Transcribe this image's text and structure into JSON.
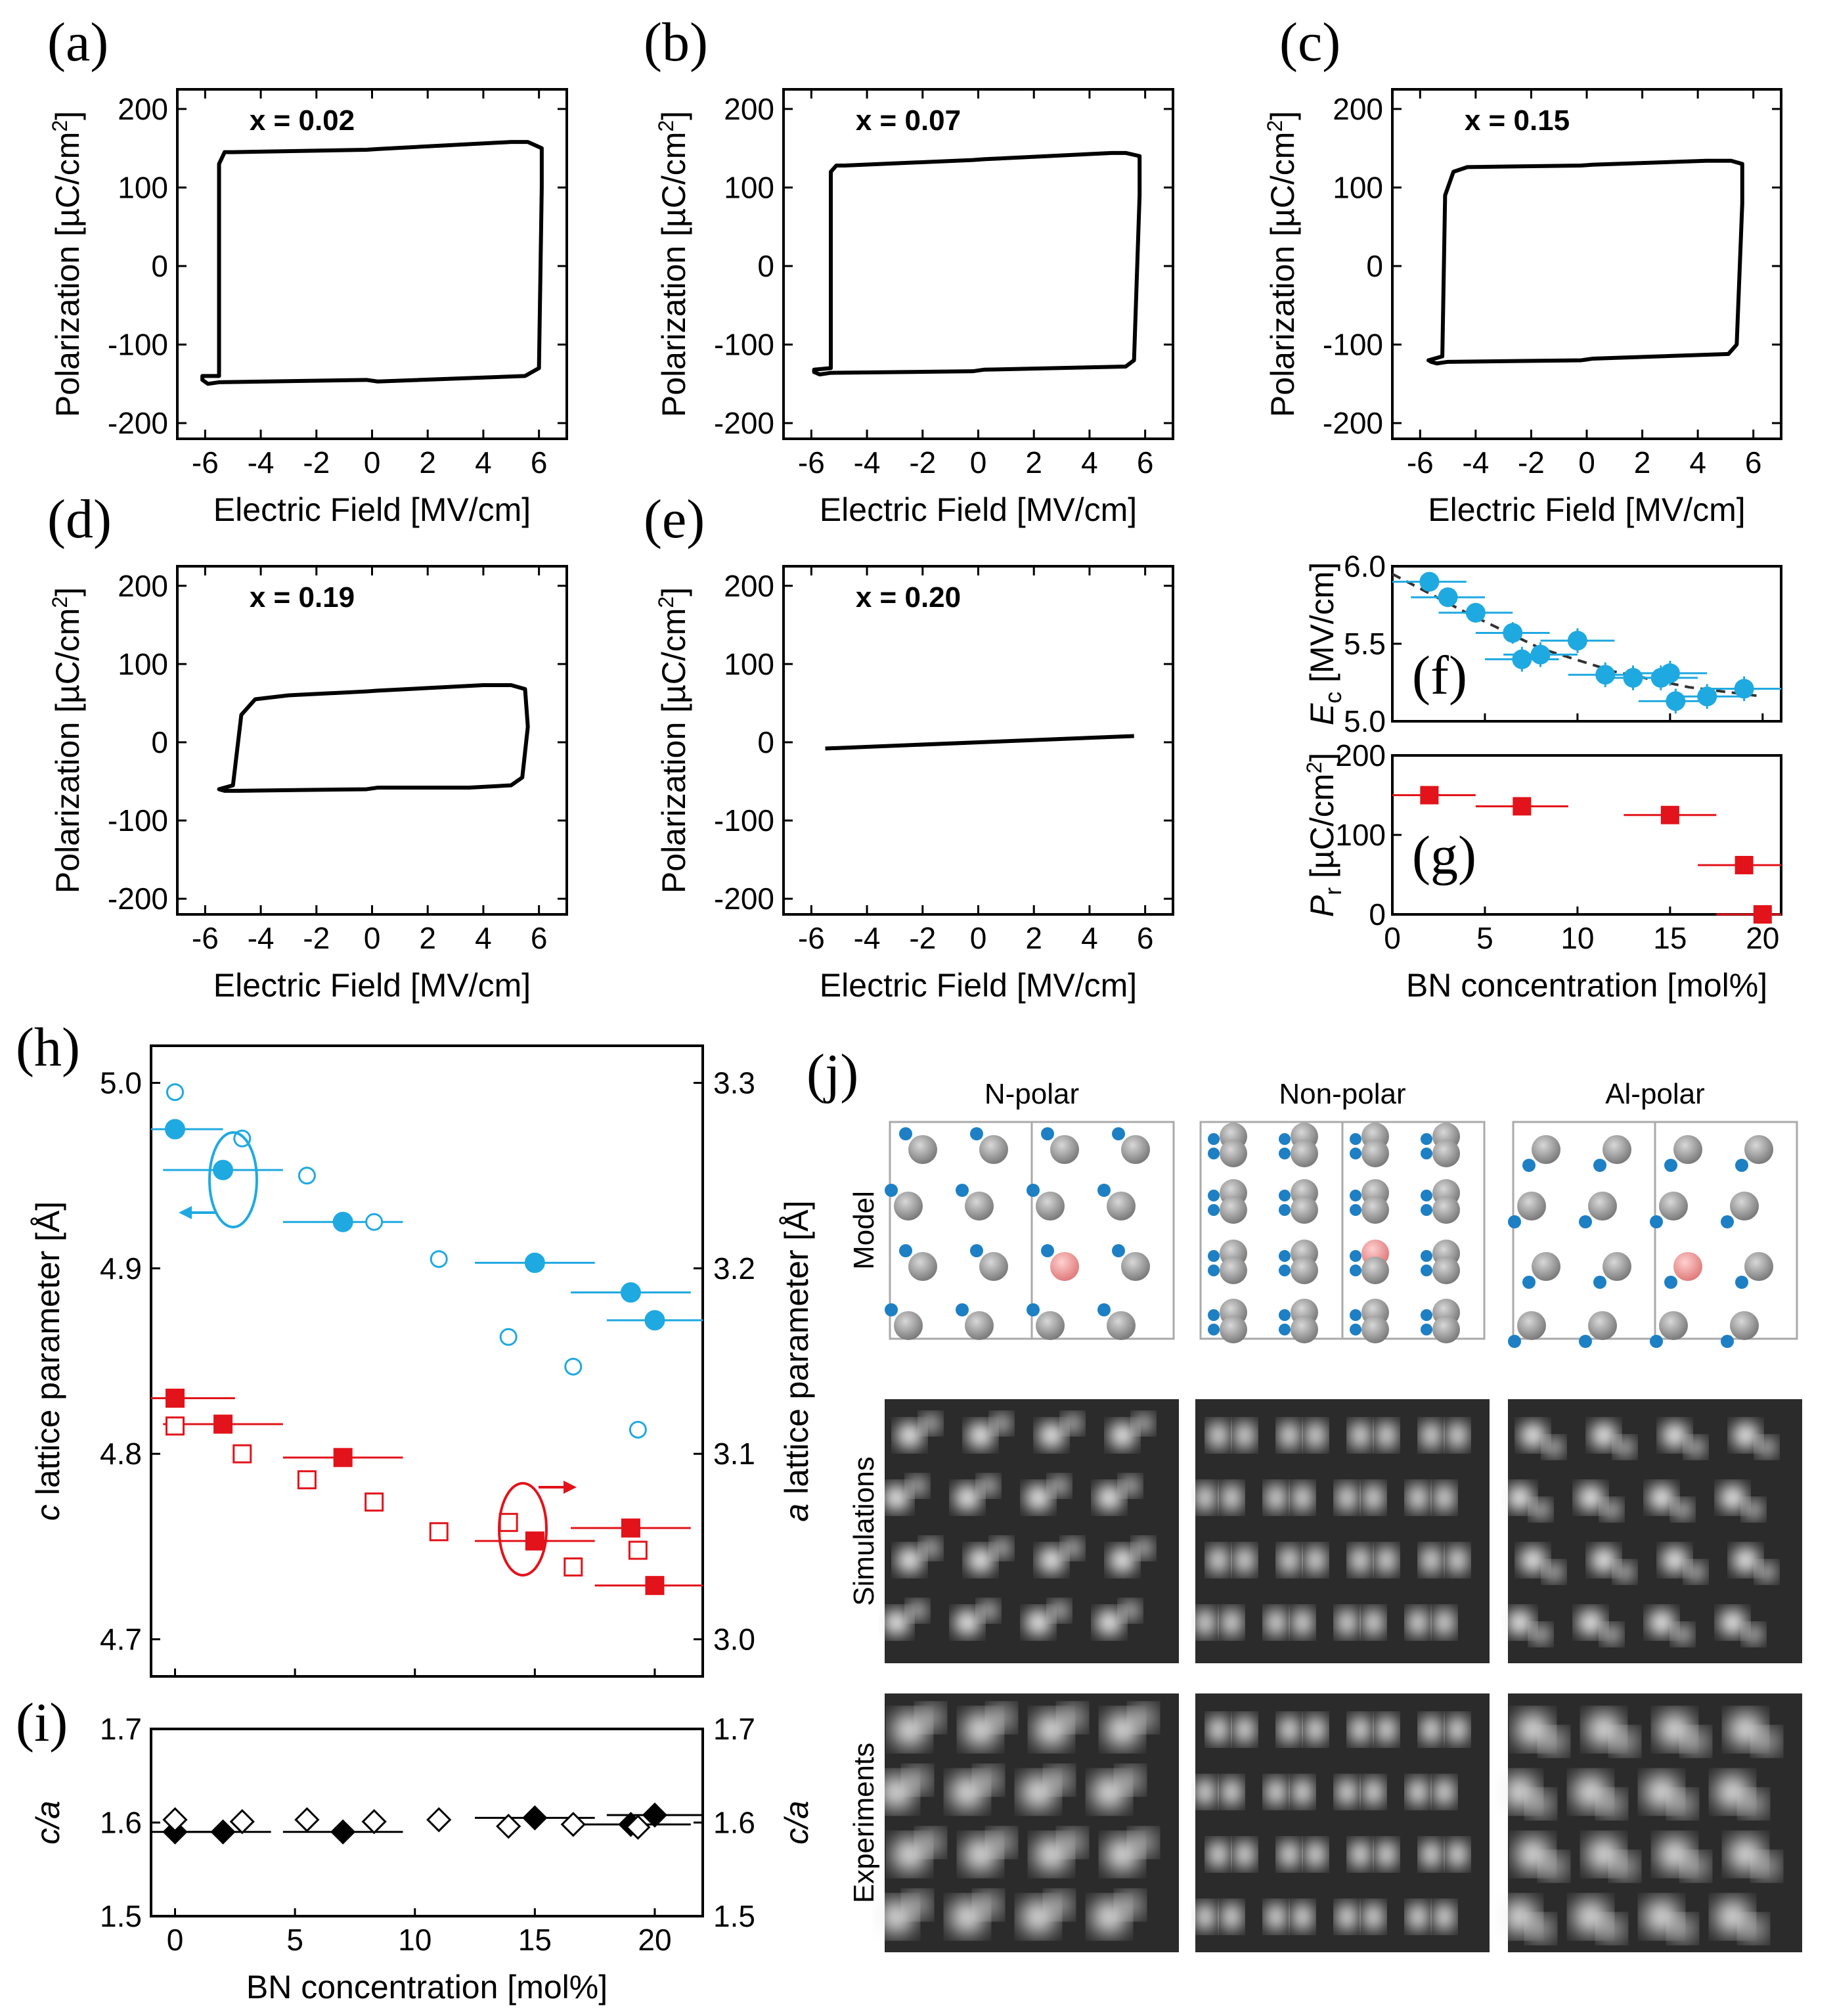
{
  "chart_data": [
    {
      "id": "a",
      "type": "line",
      "panel_label": "(a)",
      "annotation": "x = 0.02",
      "xlabel": "Electric Field [MV/cm]",
      "ylabel": "Polarization [µC/cm2]",
      "xlim": [
        -7,
        7
      ],
      "ylim": [
        -220,
        225
      ],
      "xticks": [
        -6,
        -4,
        -2,
        0,
        2,
        4,
        6
      ],
      "yticks": [
        -200,
        -100,
        0,
        100,
        200
      ],
      "loop": {
        "x": [
          -5.5,
          -5.5,
          -5.3,
          -5.0,
          -0.2,
          0.2,
          5.0,
          5.6,
          6.1,
          6.1,
          6.0,
          5.5,
          0.2,
          -0.2,
          -5.5,
          -5.9,
          -6.1,
          -6.1
        ],
        "y": [
          -140,
          130,
          145,
          145,
          148,
          149,
          158,
          158,
          150,
          100,
          -130,
          -140,
          -147,
          -145,
          -148,
          -150,
          -145,
          -140
        ]
      }
    },
    {
      "id": "b",
      "type": "line",
      "panel_label": "(b)",
      "annotation": "x = 0.07",
      "xlabel": "Electric Field [MV/cm]",
      "ylabel": "Polarization [µC/cm2]",
      "xlim": [
        -7,
        7
      ],
      "ylim": [
        -220,
        225
      ],
      "xticks": [
        -6,
        -4,
        -2,
        0,
        2,
        4,
        6
      ],
      "yticks": [
        -200,
        -100,
        0,
        100,
        200
      ],
      "loop": {
        "x": [
          -5.3,
          -5.3,
          -5.1,
          -4.8,
          -0.2,
          0.2,
          4.8,
          5.3,
          5.8,
          5.8,
          5.6,
          5.3,
          0.2,
          -0.2,
          -5.3,
          -5.7,
          -5.9,
          -5.9
        ],
        "y": [
          -130,
          120,
          128,
          128,
          135,
          136,
          144,
          144,
          140,
          90,
          -120,
          -128,
          -132,
          -134,
          -136,
          -138,
          -135,
          -132
        ]
      }
    },
    {
      "id": "c",
      "type": "line",
      "panel_label": "(c)",
      "annotation": "x = 0.15",
      "xlabel": "Electric Field [MV/cm]",
      "ylabel": "Polarization [µC/cm2]",
      "xlim": [
        -7,
        7
      ],
      "ylim": [
        -220,
        225
      ],
      "xticks": [
        -6,
        -4,
        -2,
        0,
        2,
        4,
        6
      ],
      "yticks": [
        -200,
        -100,
        0,
        100,
        200
      ],
      "loop": {
        "x": [
          -5.2,
          -5.1,
          -4.8,
          -4.3,
          -0.2,
          0.2,
          4.3,
          5.2,
          5.6,
          5.6,
          5.4,
          5.1,
          0.2,
          -0.2,
          -5.0,
          -5.4,
          -5.6,
          -5.7
        ],
        "y": [
          -115,
          90,
          120,
          126,
          128,
          129,
          134,
          134,
          130,
          80,
          -100,
          -112,
          -118,
          -120,
          -122,
          -124,
          -122,
          -120
        ]
      }
    },
    {
      "id": "d",
      "type": "line",
      "panel_label": "(d)",
      "annotation": "x = 0.19",
      "xlabel": "Electric Field [MV/cm]",
      "ylabel": "Polarization [µC/cm2]",
      "xlim": [
        -7,
        7
      ],
      "ylim": [
        -220,
        225
      ],
      "xticks": [
        -6,
        -4,
        -2,
        0,
        2,
        4,
        6
      ],
      "yticks": [
        -200,
        -100,
        0,
        100,
        200
      ],
      "loop": {
        "x": [
          -5.0,
          -4.7,
          -4.2,
          -3.0,
          -0.2,
          0.2,
          4.0,
          5.0,
          5.5,
          5.6,
          5.4,
          5.0,
          3.5,
          0.2,
          -0.2,
          -4.8,
          -5.3,
          -5.5
        ],
        "y": [
          -55,
          35,
          55,
          60,
          65,
          66,
          73,
          73,
          68,
          20,
          -45,
          -55,
          -58,
          -58,
          -60,
          -62,
          -62,
          -60
        ]
      }
    },
    {
      "id": "e",
      "type": "line",
      "panel_label": "(e)",
      "annotation": "x = 0.20",
      "xlabel": "Electric Field [MV/cm]",
      "ylabel": "Polarization [µC/cm2]",
      "xlim": [
        -7,
        7
      ],
      "ylim": [
        -220,
        225
      ],
      "xticks": [
        -6,
        -4,
        -2,
        0,
        2,
        4,
        6
      ],
      "yticks": [
        -200,
        -100,
        0,
        100,
        200
      ],
      "loop": {
        "x": [
          -5.5,
          5.6
        ],
        "y": [
          -8,
          8
        ]
      }
    },
    {
      "id": "f",
      "type": "scatter",
      "panel_label": "(f)",
      "ylabel_sym": "E",
      "ylabel_sub": "c",
      "ylabel_unit": " [MV/cm]",
      "xlim": [
        0,
        21
      ],
      "ylim": [
        5.0,
        6.0
      ],
      "yticks": [
        5.0,
        5.5,
        6.0
      ],
      "color": "#1fa9e1",
      "points": [
        {
          "x": 2.0,
          "y": 5.9,
          "xerr": 2.0,
          "yerr": 0.05
        },
        {
          "x": 3.0,
          "y": 5.8,
          "xerr": 2.0,
          "yerr": 0.06
        },
        {
          "x": 4.5,
          "y": 5.7,
          "xerr": 2.0,
          "yerr": 0.06
        },
        {
          "x": 6.5,
          "y": 5.57,
          "xerr": 2.0,
          "yerr": 0.07
        },
        {
          "x": 7.0,
          "y": 5.4,
          "xerr": 2.0,
          "yerr": 0.08
        },
        {
          "x": 8.0,
          "y": 5.43,
          "xerr": 2.0,
          "yerr": 0.08
        },
        {
          "x": 10.0,
          "y": 5.52,
          "xerr": 2.0,
          "yerr": 0.08
        },
        {
          "x": 11.5,
          "y": 5.3,
          "xerr": 2.0,
          "yerr": 0.08
        },
        {
          "x": 13.0,
          "y": 5.28,
          "xerr": 2.0,
          "yerr": 0.08
        },
        {
          "x": 14.5,
          "y": 5.28,
          "xerr": 2.0,
          "yerr": 0.08
        },
        {
          "x": 15.0,
          "y": 5.31,
          "xerr": 2.0,
          "yerr": 0.08
        },
        {
          "x": 15.3,
          "y": 5.13,
          "xerr": 2.0,
          "yerr": 0.08
        },
        {
          "x": 17.0,
          "y": 5.16,
          "xerr": 2.0,
          "yerr": 0.08
        },
        {
          "x": 19.0,
          "y": 5.21,
          "xerr": 2.0,
          "yerr": 0.08
        }
      ],
      "fit": {
        "x": [
          0,
          4,
          8,
          12,
          16,
          20
        ],
        "y": [
          5.95,
          5.7,
          5.47,
          5.32,
          5.22,
          5.16
        ]
      }
    },
    {
      "id": "g",
      "type": "scatter",
      "panel_label": "(g)",
      "ylabel_sym": "P",
      "ylabel_sub": "r",
      "ylabel_unit": " [µC/cm2]",
      "xlabel": "BN concentration [mol%]",
      "xlim": [
        0,
        21
      ],
      "ylim": [
        0,
        200
      ],
      "xticks": [
        0,
        5,
        10,
        15,
        20
      ],
      "yticks": [
        0,
        100,
        200
      ],
      "color": "#e2131a",
      "points": [
        {
          "x": 2,
          "y": 150,
          "xerr": 2.5
        },
        {
          "x": 7,
          "y": 136,
          "xerr": 2.5
        },
        {
          "x": 15,
          "y": 125,
          "xerr": 2.5
        },
        {
          "x": 19,
          "y": 62,
          "xerr": 2.5
        },
        {
          "x": 20,
          "y": 0,
          "xerr": 2.5
        }
      ]
    },
    {
      "id": "h",
      "type": "scatter",
      "panel_label": "(h)",
      "ylabel_left_italic": "c",
      "ylabel_left": " lattice parameter [Å]",
      "ylabel_right_italic": "a",
      "ylabel_right": " lattice parameter [Å]",
      "xlim": [
        -1,
        22
      ],
      "ylim": [
        4.68,
        5.02
      ],
      "yticks": [
        4.7,
        4.8,
        4.9,
        5.0
      ],
      "y2lim": [
        2.98,
        3.32
      ],
      "y2ticks": [
        3.0,
        3.1,
        3.2,
        3.3
      ],
      "series": [
        {
          "axis": "right",
          "color": "#1fa9e1",
          "filled": true,
          "shape": "circle",
          "points": [
            {
              "x": 0,
              "y": 3.275,
              "xerr": 2.0
            },
            {
              "x": 2,
              "y": 3.253,
              "xerr": 2.5
            },
            {
              "x": 7,
              "y": 3.225,
              "xerr": 2.5
            },
            {
              "x": 15,
              "y": 3.203,
              "xerr": 2.5
            },
            {
              "x": 19,
              "y": 3.187,
              "xerr": 2.5
            },
            {
              "x": 20,
              "y": 3.172,
              "xerr": 2.0
            }
          ]
        },
        {
          "axis": "right",
          "color": "#1fa9e1",
          "filled": false,
          "shape": "circle",
          "points": [
            {
              "x": 0,
              "y": 3.295
            },
            {
              "x": 2.8,
              "y": 3.27
            },
            {
              "x": 5.5,
              "y": 3.25
            },
            {
              "x": 8.3,
              "y": 3.225
            },
            {
              "x": 11,
              "y": 3.205
            },
            {
              "x": 13.9,
              "y": 3.163
            },
            {
              "x": 16.6,
              "y": 3.147
            },
            {
              "x": 19.3,
              "y": 3.113
            }
          ]
        },
        {
          "axis": "left",
          "color": "#e2131a",
          "filled": true,
          "shape": "square",
          "points": [
            {
              "x": 0,
              "y": 4.83,
              "xerr": 2.5
            },
            {
              "x": 2,
              "y": 4.816,
              "xerr": 2.5
            },
            {
              "x": 7,
              "y": 4.798,
              "xerr": 2.5
            },
            {
              "x": 15,
              "y": 4.753,
              "xerr": 2.5
            },
            {
              "x": 19,
              "y": 4.76,
              "xerr": 2.5
            },
            {
              "x": 20,
              "y": 4.729,
              "xerr": 2.5
            }
          ]
        },
        {
          "axis": "left",
          "color": "#e2131a",
          "filled": false,
          "shape": "square",
          "points": [
            {
              "x": 0,
              "y": 4.815
            },
            {
              "x": 2.8,
              "y": 4.8
            },
            {
              "x": 5.5,
              "y": 4.786
            },
            {
              "x": 8.3,
              "y": 4.774
            },
            {
              "x": 11,
              "y": 4.758
            },
            {
              "x": 13.9,
              "y": 4.763
            },
            {
              "x": 16.6,
              "y": 4.739
            },
            {
              "x": 19.3,
              "y": 4.748
            }
          ]
        }
      ]
    },
    {
      "id": "i",
      "type": "scatter",
      "panel_label": "(i)",
      "ylabel_italic": "c/a",
      "xlabel": "BN concentration [mol%]",
      "xlim": [
        -1,
        22
      ],
      "ylim": [
        1.5,
        1.7
      ],
      "yticks": [
        1.5,
        1.6,
        1.7
      ],
      "xticks": [
        0,
        5,
        10,
        15,
        20
      ],
      "series": [
        {
          "filled": true,
          "shape": "diamond",
          "color": "#000000",
          "points": [
            {
              "x": 0,
              "y": 1.59,
              "xerr": 2.0
            },
            {
              "x": 2,
              "y": 1.59,
              "xerr": 2.0
            },
            {
              "x": 7,
              "y": 1.59,
              "xerr": 2.5
            },
            {
              "x": 15,
              "y": 1.605,
              "xerr": 2.5
            },
            {
              "x": 19,
              "y": 1.598,
              "xerr": 2.5
            },
            {
              "x": 20,
              "y": 1.608,
              "xerr": 2.0
            }
          ]
        },
        {
          "filled": false,
          "shape": "diamond",
          "color": "#000000",
          "points": [
            {
              "x": 0,
              "y": 1.603
            },
            {
              "x": 2.8,
              "y": 1.601
            },
            {
              "x": 5.5,
              "y": 1.603
            },
            {
              "x": 8.3,
              "y": 1.601
            },
            {
              "x": 11,
              "y": 1.603
            },
            {
              "x": 13.9,
              "y": 1.596
            },
            {
              "x": 16.6,
              "y": 1.598
            },
            {
              "x": 19.3,
              "y": 1.595
            }
          ]
        }
      ]
    }
  ],
  "panel_j": {
    "panel_label": "(j)",
    "columns": [
      "N-polar",
      "Non-polar",
      "Al-polar"
    ],
    "rows": [
      "Model",
      "Simulations",
      "Experiments"
    ]
  }
}
